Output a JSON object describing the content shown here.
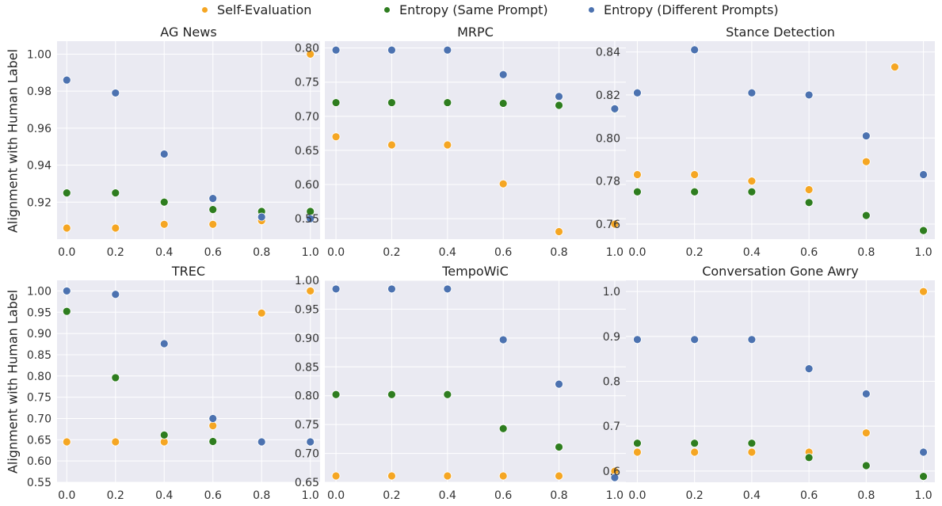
{
  "legend": {
    "self": "Self-Evaluation",
    "same": "Entropy (Same Prompt)",
    "diff": "Entropy (Different Prompts)"
  },
  "ylabel": "Alignment with Human Label",
  "colors": {
    "self": "#f5a623",
    "same": "#2e7d1f",
    "diff": "#4c72b0",
    "bg": "#eaeaf2",
    "grid": "#ffffff"
  },
  "chart_data": [
    {
      "type": "scatter",
      "title": "AG News",
      "xlim": [
        -0.04,
        1.04
      ],
      "ylim": [
        0.9,
        1.007
      ],
      "xticks": [
        "0.0",
        "0.2",
        "0.4",
        "0.6",
        "0.8",
        "1.0"
      ],
      "yticks": [
        "0.92",
        "0.94",
        "0.96",
        "0.98",
        "1.00"
      ],
      "series": [
        {
          "name": "Self-Evaluation",
          "x": [
            0.0,
            0.2,
            0.4,
            0.6,
            0.8,
            1.0
          ],
          "y": [
            0.906,
            0.906,
            0.908,
            0.908,
            0.91,
            1.0
          ]
        },
        {
          "name": "Entropy (Same Prompt)",
          "x": [
            0.0,
            0.2,
            0.4,
            0.6,
            0.8,
            1.0
          ],
          "y": [
            0.925,
            0.925,
            0.92,
            0.916,
            0.915,
            0.915
          ]
        },
        {
          "name": "Entropy (Different Prompts)",
          "x": [
            0.0,
            0.2,
            0.4,
            0.6,
            0.8,
            1.0
          ],
          "y": [
            0.986,
            0.979,
            0.946,
            0.922,
            0.912,
            0.911
          ]
        }
      ]
    },
    {
      "type": "scatter",
      "title": "MRPC",
      "xlim": [
        -0.04,
        1.04
      ],
      "ylim": [
        0.52,
        0.81
      ],
      "xticks": [
        "0.0",
        "0.2",
        "0.4",
        "0.6",
        "0.8",
        "1.0"
      ],
      "yticks": [
        "0.55",
        "0.60",
        "0.65",
        "0.70",
        "0.75",
        "0.80"
      ],
      "series": [
        {
          "name": "Self-Evaluation",
          "x": [
            0.0,
            0.2,
            0.4,
            0.6,
            0.8,
            1.0
          ],
          "y": [
            0.67,
            0.658,
            0.658,
            0.601,
            0.531,
            0.542
          ]
        },
        {
          "name": "Entropy (Same Prompt)",
          "x": [
            0.0,
            0.2,
            0.4,
            0.6,
            0.8,
            1.0
          ],
          "y": [
            0.72,
            0.72,
            0.72,
            0.719,
            0.716,
            0.71
          ]
        },
        {
          "name": "Entropy (Different Prompts)",
          "x": [
            0.0,
            0.2,
            0.4,
            0.6,
            0.8,
            1.0
          ],
          "y": [
            0.797,
            0.797,
            0.797,
            0.761,
            0.729,
            0.711
          ]
        }
      ]
    },
    {
      "type": "scatter",
      "title": "Stance Detection",
      "xlim": [
        -0.04,
        1.04
      ],
      "ylim": [
        0.753,
        0.845
      ],
      "xticks": [
        "0.0",
        "0.2",
        "0.4",
        "0.6",
        "0.8",
        "1.0"
      ],
      "yticks": [
        "0.76",
        "0.78",
        "0.80",
        "0.82",
        "0.84"
      ],
      "series": [
        {
          "name": "Self-Evaluation",
          "x": [
            0.0,
            0.2,
            0.4,
            0.6,
            0.8,
            0.9
          ],
          "y": [
            0.783,
            0.783,
            0.78,
            0.776,
            0.789,
            0.833
          ]
        },
        {
          "name": "Entropy (Same Prompt)",
          "x": [
            0.0,
            0.2,
            0.4,
            0.6,
            0.8,
            1.0
          ],
          "y": [
            0.775,
            0.775,
            0.775,
            0.77,
            0.764,
            0.757
          ]
        },
        {
          "name": "Entropy (Different Prompts)",
          "x": [
            0.0,
            0.2,
            0.4,
            0.6,
            0.8,
            1.0
          ],
          "y": [
            0.821,
            0.841,
            0.821,
            0.82,
            0.801,
            0.783
          ]
        }
      ]
    },
    {
      "type": "scatter",
      "title": "TREC",
      "xlim": [
        -0.04,
        1.04
      ],
      "ylim": [
        0.55,
        1.025
      ],
      "xticks": [
        "0.0",
        "0.2",
        "0.4",
        "0.6",
        "0.8",
        "1.0"
      ],
      "yticks": [
        "0.55",
        "0.60",
        "0.65",
        "0.70",
        "0.75",
        "0.80",
        "0.85",
        "0.90",
        "0.95",
        "1.00"
      ],
      "series": [
        {
          "name": "Self-Evaluation",
          "x": [
            0.0,
            0.2,
            0.4,
            0.6,
            0.8,
            1.0
          ],
          "y": [
            0.645,
            0.645,
            0.645,
            0.683,
            0.948,
            1.0
          ]
        },
        {
          "name": "Entropy (Same Prompt)",
          "x": [
            0.0,
            0.2,
            0.4,
            0.6,
            0.8,
            1.0
          ],
          "y": [
            0.952,
            0.796,
            0.661,
            0.646,
            0.645,
            0.645
          ]
        },
        {
          "name": "Entropy (Different Prompts)",
          "x": [
            0.0,
            0.2,
            0.4,
            0.6,
            0.8,
            1.0
          ],
          "y": [
            1.0,
            0.992,
            0.876,
            0.7,
            0.645,
            0.645
          ]
        }
      ]
    },
    {
      "type": "scatter",
      "title": "TempoWiC",
      "xlim": [
        -0.04,
        1.04
      ],
      "ylim": [
        0.65,
        1.0
      ],
      "xticks": [
        "0.0",
        "0.2",
        "0.4",
        "0.6",
        "0.8",
        "1.0"
      ],
      "yticks": [
        "0.65",
        "0.70",
        "0.75",
        "0.80",
        "0.85",
        "0.90",
        "0.95",
        "1.00"
      ],
      "series": [
        {
          "name": "Self-Evaluation",
          "x": [
            0.0,
            0.2,
            0.4,
            0.6,
            0.8,
            1.0
          ],
          "y": [
            0.661,
            0.661,
            0.661,
            0.661,
            0.661,
            0.669
          ]
        },
        {
          "name": "Entropy (Same Prompt)",
          "x": [
            0.0,
            0.2,
            0.4,
            0.6,
            0.8,
            1.0
          ],
          "y": [
            0.802,
            0.802,
            0.802,
            0.743,
            0.711,
            0.658
          ]
        },
        {
          "name": "Entropy (Different Prompts)",
          "x": [
            0.0,
            0.2,
            0.4,
            0.6,
            0.8,
            1.0
          ],
          "y": [
            0.985,
            0.985,
            0.985,
            0.897,
            0.82,
            0.658
          ]
        }
      ]
    },
    {
      "type": "scatter",
      "title": "Conversation Gone Awry",
      "xlim": [
        -0.04,
        1.04
      ],
      "ylim": [
        0.575,
        1.025
      ],
      "xticks": [
        "0.0",
        "0.2",
        "0.4",
        "0.6",
        "0.8",
        "1.0"
      ],
      "yticks": [
        "0.6",
        "0.7",
        "0.8",
        "0.9",
        "1.0"
      ],
      "series": [
        {
          "name": "Self-Evaluation",
          "x": [
            0.0,
            0.2,
            0.4,
            0.6,
            0.8,
            1.0
          ],
          "y": [
            0.642,
            0.642,
            0.642,
            0.642,
            0.685,
            1.0
          ]
        },
        {
          "name": "Entropy (Same Prompt)",
          "x": [
            0.0,
            0.2,
            0.4,
            0.6,
            0.8,
            1.0
          ],
          "y": [
            0.662,
            0.662,
            0.662,
            0.63,
            0.612,
            0.588
          ]
        },
        {
          "name": "Entropy (Different Prompts)",
          "x": [
            0.0,
            0.2,
            0.4,
            0.6,
            0.8,
            1.0
          ],
          "y": [
            0.893,
            0.893,
            0.893,
            0.828,
            0.772,
            0.642
          ]
        }
      ]
    }
  ]
}
